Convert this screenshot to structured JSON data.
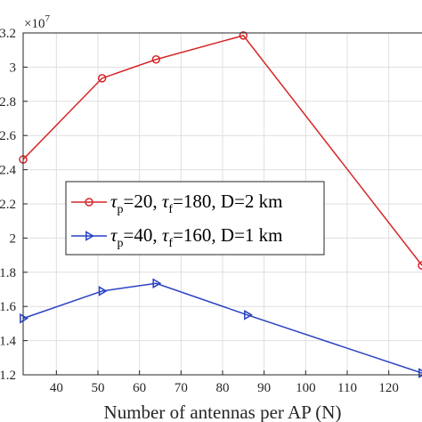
{
  "chart_data": {
    "type": "line",
    "title": "",
    "xlabel": "Number of antennas per AP (N)",
    "ylabel": "",
    "y_exponent_label": "×10",
    "y_exponent": "7",
    "xlim": [
      32,
      128
    ],
    "ylim": [
      1.2,
      3.2
    ],
    "x_ticks": [
      40,
      50,
      60,
      70,
      80,
      90,
      100,
      110,
      120
    ],
    "y_ticks": [
      1.2,
      1.4,
      1.6,
      1.8,
      2,
      2.2,
      2.4,
      2.6,
      2.8,
      3,
      3.2
    ],
    "y_tick_labels": [
      "1.2",
      "1.4",
      "1.6",
      "1.8",
      "2",
      "2.2",
      "2.4",
      "2.6",
      "2.8",
      "3",
      "3.2"
    ],
    "grid": true,
    "legend_position": "center-left",
    "series": [
      {
        "legend": {
          "tau_p_symbol": "τ",
          "tau_p_sub": "p",
          "tau_p_value": "=20, ",
          "tau_f_symbol": "τ",
          "tau_f_sub": "f",
          "tau_f_value": "=180, D=2 km"
        },
        "color": "#d62728",
        "marker": "circle",
        "x": [
          32,
          51,
          64,
          85,
          128
        ],
        "y": [
          2.46,
          2.935,
          3.045,
          3.185,
          1.84
        ]
      },
      {
        "legend": {
          "tau_p_symbol": "τ",
          "tau_p_sub": "p",
          "tau_p_value": "=40, ",
          "tau_f_symbol": "τ",
          "tau_f_sub": "f",
          "tau_f_value": "=160, D=1 km"
        },
        "color": "#2741c4",
        "marker": "triangle-right",
        "x": [
          32,
          51,
          64,
          86,
          128
        ],
        "y": [
          1.53,
          1.69,
          1.735,
          1.55,
          1.21
        ]
      }
    ]
  }
}
